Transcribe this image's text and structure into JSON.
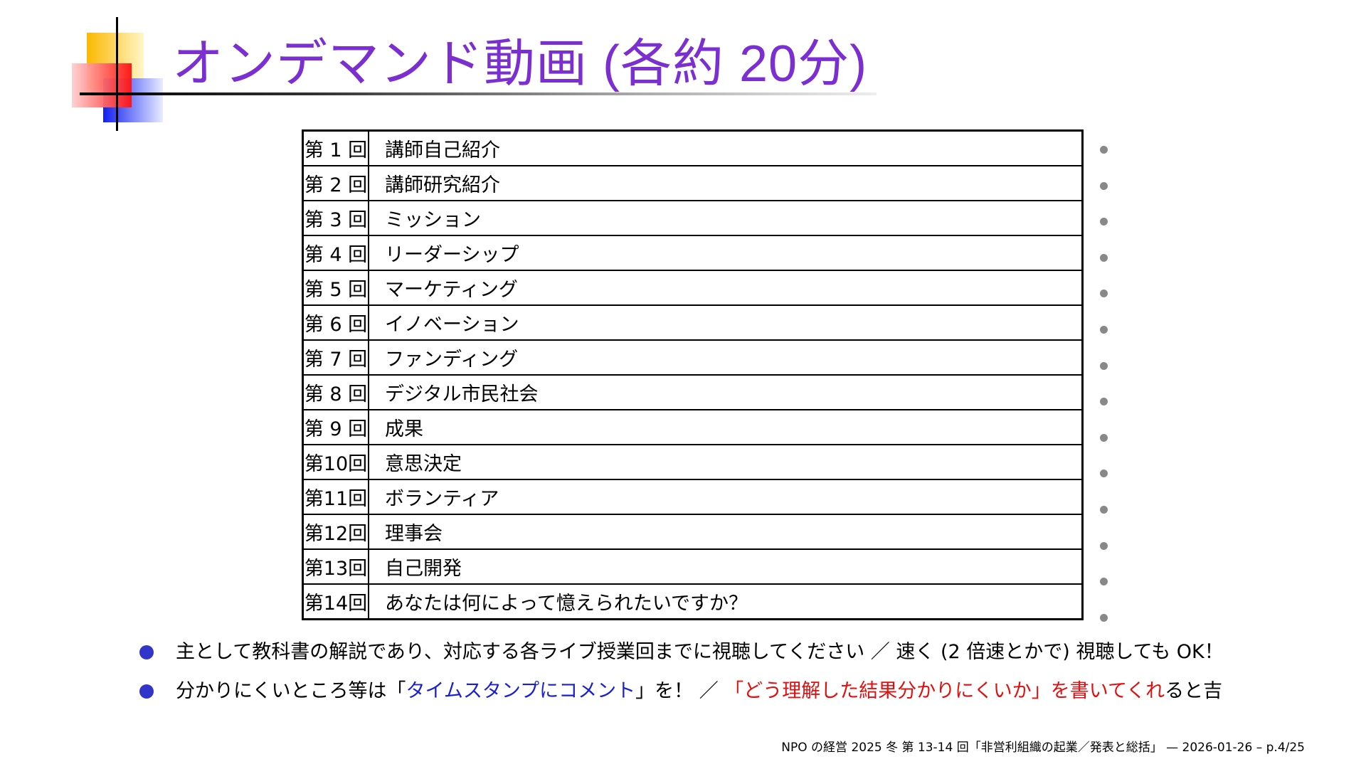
{
  "title": "オンデマンド動画 (各約 20分)",
  "schedule": [
    {
      "num": "第 1 回",
      "topic": "講師自己紹介"
    },
    {
      "num": "第 2 回",
      "topic": "講師研究紹介"
    },
    {
      "num": "第 3 回",
      "topic": "ミッション"
    },
    {
      "num": "第 4 回",
      "topic": "リーダーシップ"
    },
    {
      "num": "第 5 回",
      "topic": "マーケティング"
    },
    {
      "num": "第 6 回",
      "topic": "イノベーション"
    },
    {
      "num": "第 7 回",
      "topic": "ファンディング"
    },
    {
      "num": "第 8 回",
      "topic": "デジタル市民社会"
    },
    {
      "num": "第 9 回",
      "topic": "成果"
    },
    {
      "num": "第10回",
      "topic": "意思決定"
    },
    {
      "num": "第11回",
      "topic": "ボランティア"
    },
    {
      "num": "第12回",
      "topic": "理事会"
    },
    {
      "num": "第13回",
      "topic": "自己開発"
    },
    {
      "num": "第14回",
      "topic": "あなたは何によって憶えられたいですか？"
    }
  ],
  "bullets": [
    {
      "text": "主として教科書の解説であり、対応する各ライブ授業回までに視聴してください ／ 速く (2 倍速とかで) 視聴しても OK！"
    },
    {
      "pre": "分かりにくいところ等は「",
      "blue": "タイムスタンプにコメント",
      "mid": "」を！ ／ ",
      "red": "「どう理解した結果分かりにくいか」を書いてくれ",
      "post": "ると吉"
    }
  ],
  "footer": "NPO の経営 2025 冬 第 13-14 回「非営利組織の起業／発表と総括」 — 2026-01-26 – p.4/25",
  "colors": {
    "title": "#7b2fd0",
    "bullet": "#3236c8",
    "blue": "#1a20d0",
    "red": "#e01010"
  }
}
